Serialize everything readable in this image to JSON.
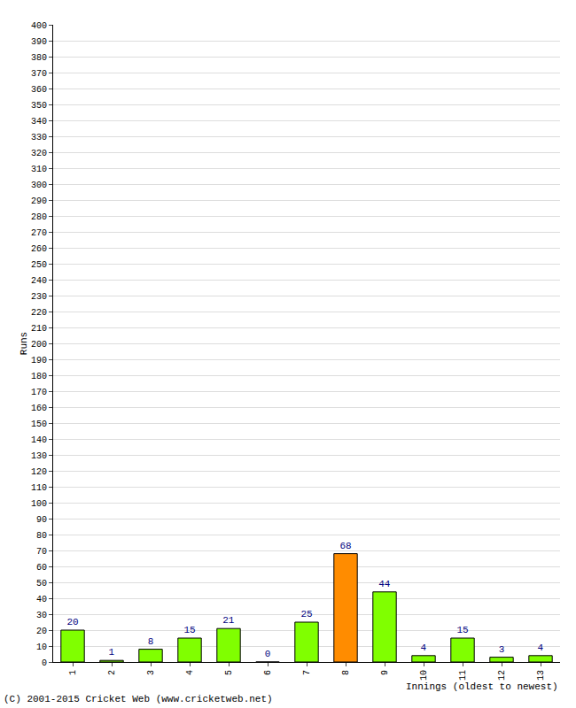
{
  "chart_data": {
    "type": "bar",
    "xlabel": "Innings (oldest to newest)",
    "ylabel": "Runs",
    "categories": [
      "1",
      "2",
      "3",
      "4",
      "5",
      "6",
      "7",
      "8",
      "9",
      "10",
      "11",
      "12",
      "13"
    ],
    "values": [
      20,
      1,
      8,
      15,
      21,
      0,
      25,
      68,
      44,
      4,
      15,
      3,
      4
    ],
    "colors": [
      "#80ff00",
      "#80ff00",
      "#80ff00",
      "#80ff00",
      "#80ff00",
      "#80ff00",
      "#80ff00",
      "#ff8c00",
      "#80ff00",
      "#80ff00",
      "#80ff00",
      "#80ff00",
      "#80ff00"
    ],
    "ylim": [
      0,
      400
    ],
    "yticks": [
      0,
      10,
      20,
      30,
      40,
      50,
      60,
      70,
      80,
      90,
      100,
      110,
      120,
      130,
      140,
      150,
      160,
      170,
      180,
      190,
      200,
      210,
      220,
      230,
      240,
      250,
      260,
      270,
      280,
      290,
      300,
      310,
      320,
      330,
      340,
      350,
      360,
      370,
      380,
      390,
      400
    ],
    "grid": true,
    "data_labels": true,
    "annotations": [
      "(C) 2001-2015 Cricket Web (www.cricketweb.net)"
    ]
  }
}
